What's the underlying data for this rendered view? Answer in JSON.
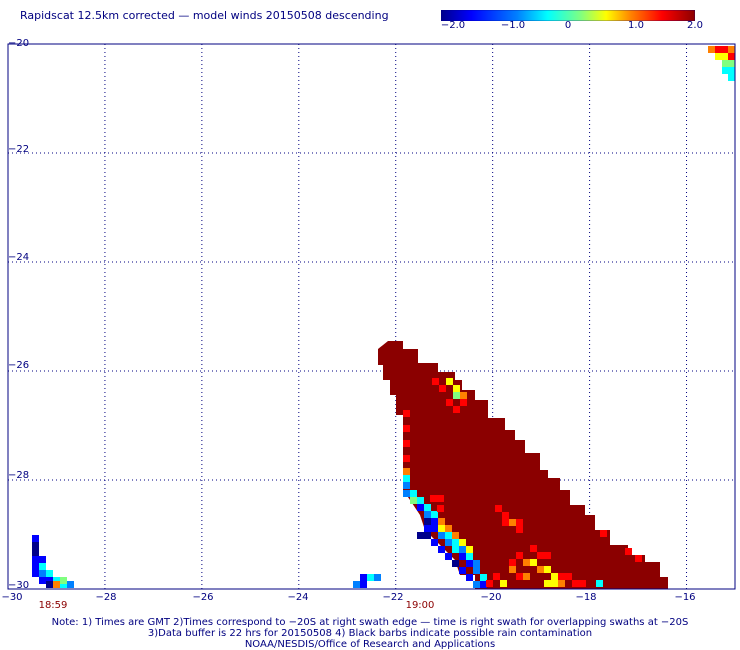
{
  "title": "Rapidscat 12.5km corrected — model winds 20150508 descending",
  "colorbar": {
    "tick_labels": [
      "−2.0",
      "−1.0",
      "0",
      "1.0",
      "2.0"
    ],
    "tick_values": [
      -2.0,
      -1.0,
      0,
      1.0,
      2.0
    ],
    "colors": [
      "#00008b",
      "#0000ff",
      "#0080ff",
      "#00ffff",
      "#80ff80",
      "#ffff00",
      "#ff8000",
      "#ff0000",
      "#8b0000"
    ]
  },
  "axes": {
    "lon_range": [
      -30,
      -15
    ],
    "lat_range": [
      -30,
      -20
    ],
    "x_ticks": [
      -30,
      -28,
      -26,
      -24,
      -22,
      -20,
      -18,
      -16
    ],
    "x_tick_labels": [
      "−30",
      "−28",
      "−26",
      "−24",
      "−22",
      "−20",
      "−18",
      "−16"
    ],
    "y_ticks": [
      -20,
      -22,
      -24,
      -26,
      -28,
      -30
    ],
    "y_tick_labels": [
      "−20",
      "−22",
      "−24",
      "−26",
      "−28",
      "−30"
    ],
    "grid": "dotted"
  },
  "time_labels": [
    {
      "text": "18:59",
      "lon": -29.1
    },
    {
      "text": "19:00",
      "lon": -21.4
    }
  ],
  "notes": [
    "Note: 1) Times are GMT 2)Times correspond to −20S at right swath edge — time is right swath for overlapping swaths at −20S",
    "3)Data buffer is 22 hrs for 20150508 4) Black barbs indicate possible rain contamination",
    "NOAA/NESDIS/Office of Research and Applications"
  ]
}
